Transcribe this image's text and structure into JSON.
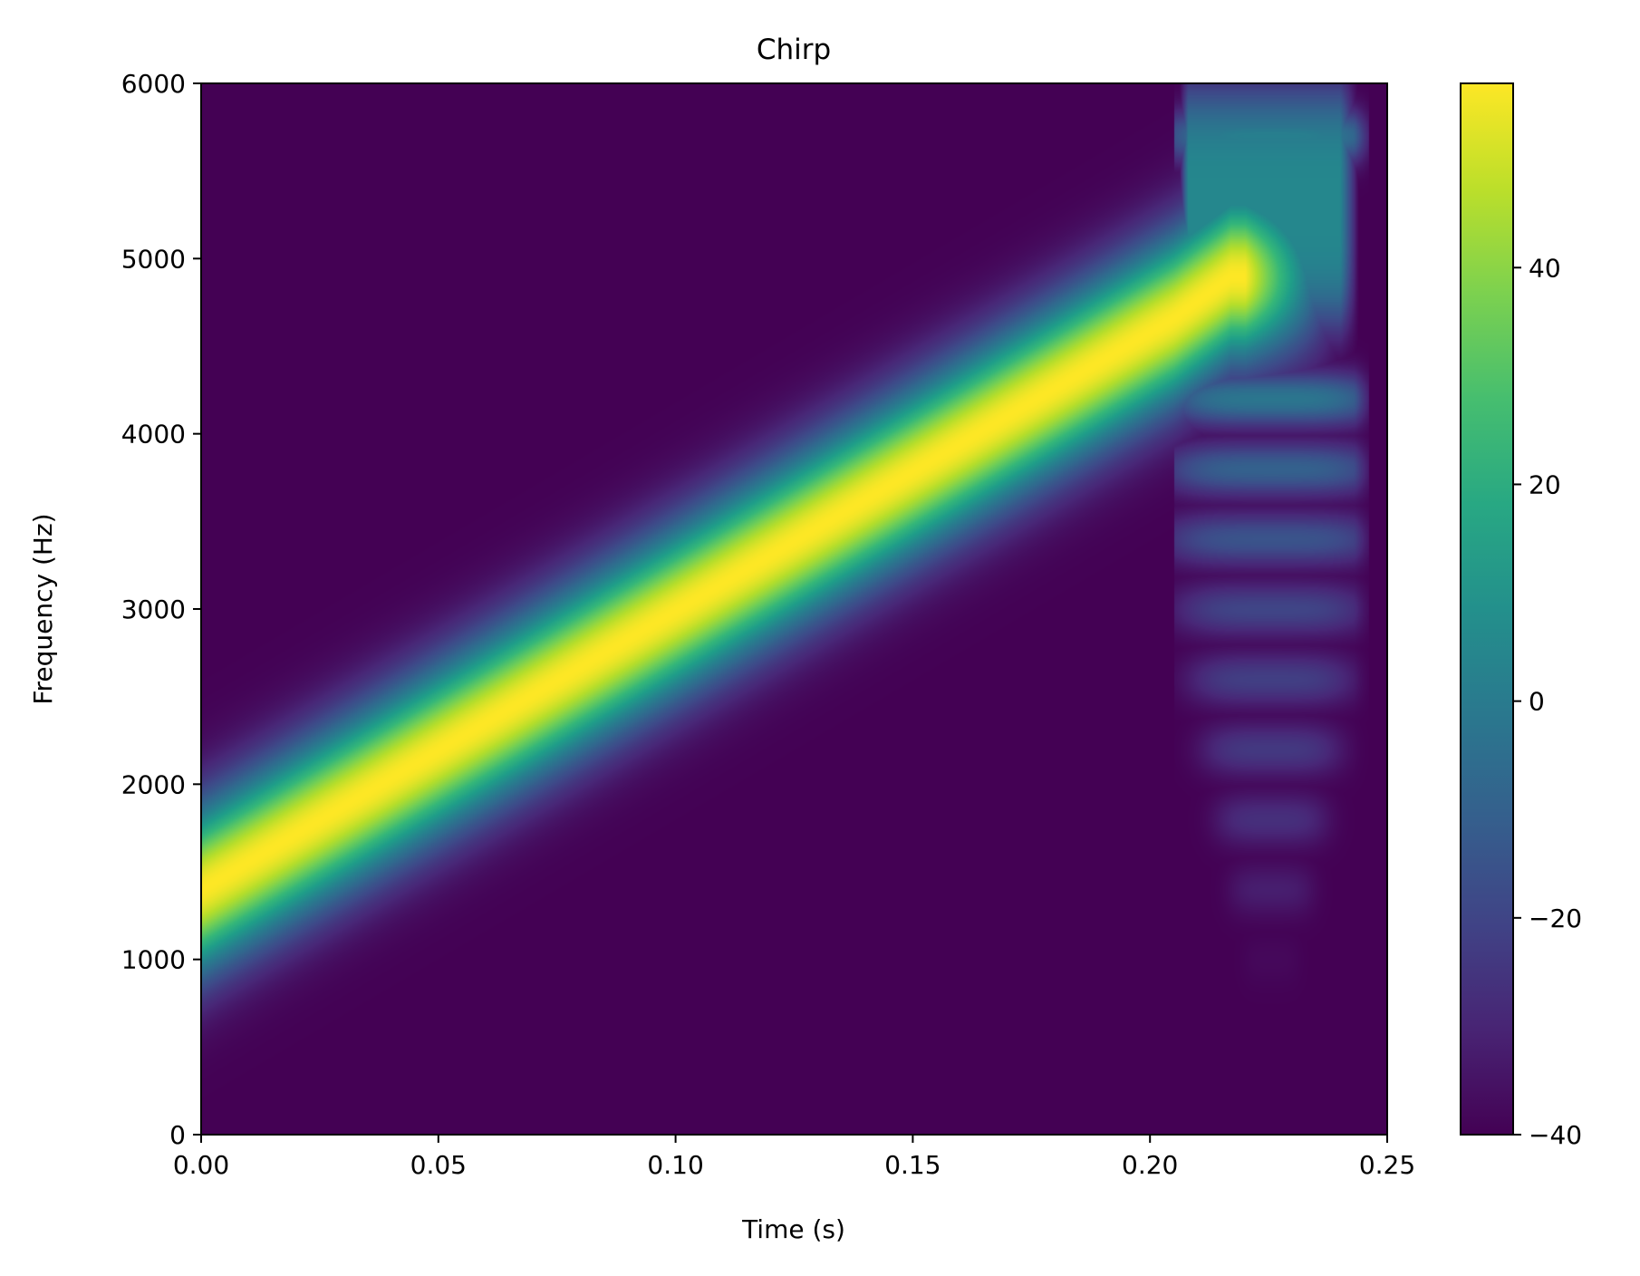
{
  "chart_data": {
    "type": "heatmap",
    "title": "Chirp",
    "xlabel": "Time (s)",
    "ylabel": "Frequency (Hz)",
    "xlim": [
      0.0,
      0.25
    ],
    "ylim": [
      0,
      6000
    ],
    "x_ticks": [
      0.0,
      0.05,
      0.1,
      0.15,
      0.2,
      0.25
    ],
    "x_tick_labels": [
      "0.00",
      "0.05",
      "0.10",
      "0.15",
      "0.20",
      "0.25"
    ],
    "y_ticks": [
      0,
      1000,
      2000,
      3000,
      4000,
      5000,
      6000
    ],
    "y_tick_labels": [
      "0",
      "1000",
      "2000",
      "3000",
      "4000",
      "5000",
      "6000"
    ],
    "grid": false,
    "colormap": "viridis",
    "colorbar": {
      "range": [
        -40,
        57
      ],
      "ticks": [
        -40,
        -20,
        0,
        20,
        40
      ],
      "tick_labels": [
        "−40",
        "−20",
        "0",
        "20",
        "40"
      ]
    },
    "chirp": {
      "start_time": 0.0,
      "start_freq": 1400,
      "end_time": 0.22,
      "end_freq": 4900,
      "peak_db": 57,
      "floor_db": -40
    },
    "harmonic_bands": [
      {
        "freq": 1000,
        "db": -38
      },
      {
        "freq": 1400,
        "db": -32
      },
      {
        "freq": 1800,
        "db": -27
      },
      {
        "freq": 2200,
        "db": -24
      },
      {
        "freq": 2600,
        "db": -22
      },
      {
        "freq": 3000,
        "db": -20
      },
      {
        "freq": 3400,
        "db": -15
      },
      {
        "freq": 3800,
        "db": -10
      },
      {
        "freq": 4200,
        "db": -2
      },
      {
        "freq": 5700,
        "db": 2
      }
    ]
  }
}
